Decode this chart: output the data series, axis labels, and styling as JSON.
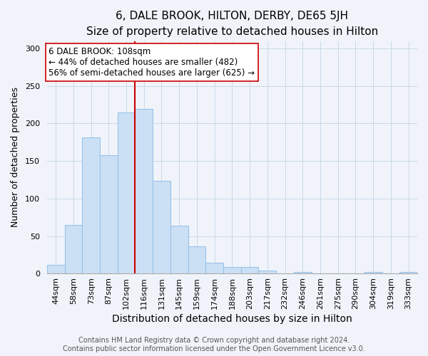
{
  "title": "6, DALE BROOK, HILTON, DERBY, DE65 5JH",
  "subtitle": "Size of property relative to detached houses in Hilton",
  "xlabel": "Distribution of detached houses by size in Hilton",
  "ylabel": "Number of detached properties",
  "bar_labels": [
    "44sqm",
    "58sqm",
    "73sqm",
    "87sqm",
    "102sqm",
    "116sqm",
    "131sqm",
    "145sqm",
    "159sqm",
    "174sqm",
    "188sqm",
    "203sqm",
    "217sqm",
    "232sqm",
    "246sqm",
    "261sqm",
    "275sqm",
    "290sqm",
    "304sqm",
    "319sqm",
    "333sqm"
  ],
  "bar_heights": [
    12,
    65,
    181,
    158,
    215,
    219,
    124,
    64,
    36,
    14,
    9,
    9,
    4,
    0,
    2,
    0,
    0,
    0,
    2,
    0,
    2
  ],
  "bar_color": "#cce0f5",
  "bar_edge_color": "#99c2e8",
  "vline_index": 5,
  "vline_color": "#cc0000",
  "annotation_line1": "6 DALE BROOK: 108sqm",
  "annotation_line2": "← 44% of detached houses are smaller (482)",
  "annotation_line3": "56% of semi-detached houses are larger (625) →",
  "annotation_box_color": "#ffffff",
  "annotation_box_edge": "#cc0000",
  "ylim": [
    0,
    310
  ],
  "yticks": [
    0,
    50,
    100,
    150,
    200,
    250,
    300
  ],
  "footer1": "Contains HM Land Registry data © Crown copyright and database right 2024.",
  "footer2": "Contains public sector information licensed under the Open Government Licence v3.0.",
  "title_fontsize": 11,
  "subtitle_fontsize": 9.5,
  "xlabel_fontsize": 10,
  "ylabel_fontsize": 9,
  "tick_fontsize": 8,
  "annotation_fontsize": 8.5,
  "footer_fontsize": 7,
  "bg_color": "#f0f4fa"
}
